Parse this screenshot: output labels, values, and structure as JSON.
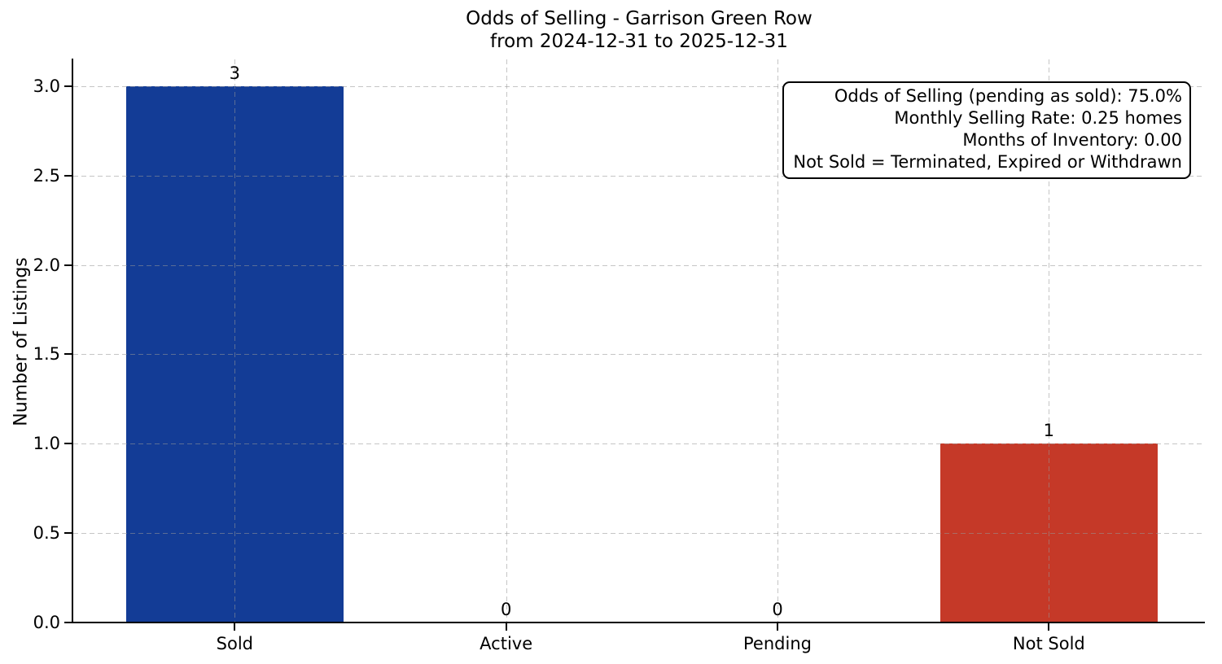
{
  "chart_data": {
    "type": "bar",
    "title": "Odds of Selling - Garrison Green Row",
    "subtitle": "from 2024-12-31 to 2025-12-31",
    "ylabel": "Number of Listings",
    "xlabel": "",
    "categories": [
      "Sold",
      "Active",
      "Pending",
      "Not Sold"
    ],
    "values": [
      3,
      0,
      0,
      1
    ],
    "bar_value_labels": [
      "3",
      "0",
      "0",
      "1"
    ],
    "bar_colors": [
      "#133c96",
      null,
      null,
      "#c53928"
    ],
    "yticks": [
      {
        "label": "0.0",
        "value": 0.0
      },
      {
        "label": "0.5",
        "value": 0.5
      },
      {
        "label": "1.0",
        "value": 1.0
      },
      {
        "label": "1.5",
        "value": 1.5
      },
      {
        "label": "2.0",
        "value": 2.0
      },
      {
        "label": "2.5",
        "value": 2.5
      },
      {
        "label": "3.0",
        "value": 3.0
      }
    ],
    "ylim": [
      0,
      3.15
    ],
    "grid": "dashed light-gray horizontal and vertical gridlines drawn over bars",
    "legend": "none",
    "annotation": {
      "lines": [
        "Odds of Selling (pending as sold): 75.0%",
        "Monthly Selling Rate: 0.25 homes",
        "Months of Inventory: 0.00",
        "Not Sold = Terminated, Expired or Withdrawn"
      ]
    }
  }
}
